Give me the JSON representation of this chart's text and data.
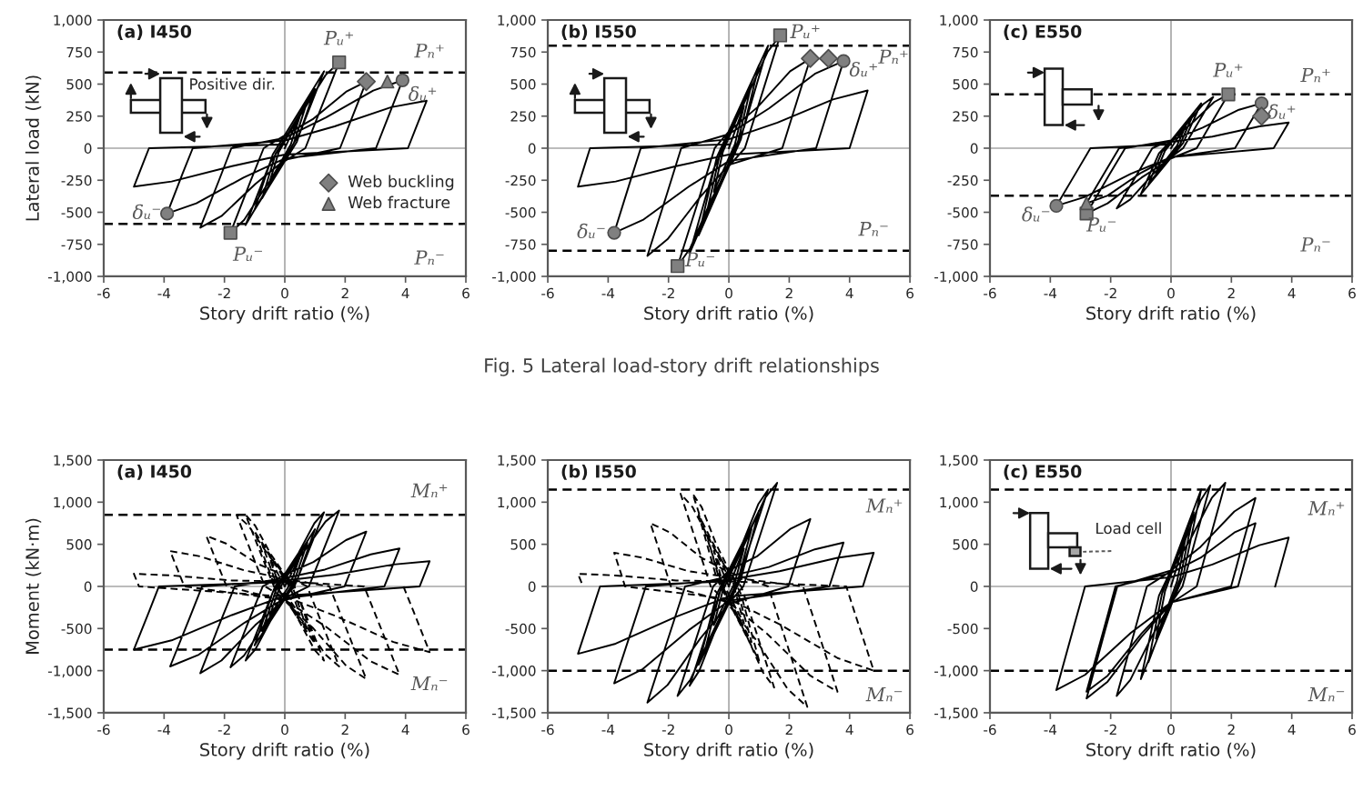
{
  "chart_data": [
    {
      "type": "line",
      "title": "(a) I450",
      "xlabel": "Story drift ratio (%)",
      "ylabel": "Lateral load (kN)",
      "xlim": [
        -6,
        6
      ],
      "xticks": [
        -6,
        -4,
        -2,
        0,
        2,
        4,
        6
      ],
      "ylim": [
        -1000,
        1000
      ],
      "yticks": [
        {
          "value": -1000,
          "label": "-1,000"
        },
        -750,
        -500,
        -250,
        0,
        250,
        500,
        750,
        {
          "value": 1000,
          "label": "1,000"
        }
      ],
      "legend": "bottom right",
      "series": [
        {
          "color": "#000000",
          "line_style": "solid",
          "x": [
            0,
            0.5,
            0.2,
            -0.5,
            -0.2,
            0.75,
            0.3,
            -0.75,
            -0.3,
            1.0,
            0.4,
            -1.0,
            -0.4,
            1.3,
            0.5,
            -1.3,
            -0.5,
            0.63,
            1.35,
            1.8,
            1.13,
            0.68,
            0,
            -0.63,
            -1.35,
            -1.8,
            -1.14,
            -0.7,
            0,
            0.95,
            2.03,
            2.7,
            2.18,
            1.83,
            0,
            -0.98,
            -2.1,
            -2.8,
            -2.18,
            -1.77,
            0,
            1.37,
            2.93,
            3.9,
            3.37,
            3.02,
            0,
            -1.37,
            -2.93,
            -3.9,
            -3.39,
            -3.05,
            0,
            1.65,
            3.53,
            4.7,
            4.33,
            4.08,
            0,
            -1.75,
            -3.75,
            -5.0,
            -4.7,
            -4.5,
            0
          ],
          "values": [
            0,
            250,
            30,
            -260,
            -30,
            370,
            40,
            -390,
            -40,
            460,
            50,
            -480,
            -50,
            600,
            120,
            -600,
            -120,
            300,
            570,
            670,
            270,
            0,
            -100,
            -300,
            -560,
            -660,
            -260,
            0,
            100,
            230,
            440,
            520,
            210,
            0,
            -90,
            -280,
            -530,
            -620,
            -250,
            0,
            80,
            240,
            450,
            530,
            210,
            0,
            -80,
            -230,
            -430,
            -510,
            -200,
            0,
            60,
            170,
            320,
            370,
            150,
            0,
            -50,
            -140,
            -260,
            -300,
            -120,
            0,
            30
          ]
        },
        {
          "type": "scatter",
          "marker": "square",
          "color": "#808080",
          "x": [
            1.8,
            -1.8
          ],
          "values": [
            670,
            -660
          ]
        },
        {
          "type": "scatter",
          "marker": "circle",
          "color": "#808080",
          "x": [
            3.9,
            -3.9
          ],
          "values": [
            530,
            -510
          ]
        },
        {
          "type": "scatter",
          "name": "Web buckling",
          "marker": "diamond",
          "color": "#808080",
          "x": [
            2.7
          ],
          "values": [
            520
          ]
        },
        {
          "type": "scatter",
          "name": "Web fracture",
          "marker": "triangle",
          "color": "#808080",
          "x": [
            3.4
          ],
          "values": [
            520
          ]
        }
      ],
      "ref_lines": [
        {
          "axis": "x",
          "value": 0,
          "color": "#a6a6a6",
          "line_style": "solid"
        },
        {
          "axis": "y",
          "value": 0,
          "color": "#a6a6a6",
          "line_style": "solid"
        },
        {
          "axis": "y",
          "value": 590,
          "label": "Pₙ⁺",
          "color": "#000000",
          "line_style": "dashed"
        },
        {
          "axis": "y",
          "value": -590,
          "label": "Pₙ⁻",
          "color": "#000000",
          "line_style": "dashed"
        }
      ],
      "annotations": [
        {
          "text": "Pᵤ⁺",
          "x": 1.8,
          "y": 670
        },
        {
          "text": "δᵤ⁺",
          "x": 3.9,
          "y": 530
        },
        {
          "text": "Pᵤ⁻",
          "x": -1.8,
          "y": -660
        },
        {
          "text": "δᵤ⁻",
          "x": -3.9,
          "y": -510
        },
        "Positive dir."
      ]
    },
    {
      "type": "line",
      "title": "(b) I550",
      "xlabel": "Story drift ratio (%)",
      "xlim": [
        -6,
        6
      ],
      "xticks": [
        -6,
        -4,
        -2,
        0,
        2,
        4,
        6
      ],
      "ylim": [
        -1000,
        1000
      ],
      "yticks": [
        {
          "value": -1000,
          "label": "-1,000"
        },
        -750,
        -500,
        -250,
        0,
        250,
        500,
        750,
        {
          "value": 1000,
          "label": "1,000"
        }
      ],
      "series": [
        {
          "color": "#000000",
          "line_style": "solid",
          "x": [
            0,
            0.5,
            0.2,
            -0.5,
            -0.2,
            0.75,
            0.3,
            -0.75,
            -0.3,
            1.0,
            0.4,
            -1.0,
            -0.4,
            1.3,
            0.5,
            -1.3,
            -0.5,
            0.6,
            1.28,
            1.7,
            1.0,
            0.53,
            0,
            -0.6,
            -1.28,
            -1.7,
            -0.96,
            -0.47,
            0,
            0.95,
            2.03,
            2.7,
            2.14,
            1.77,
            0,
            -0.95,
            -2.03,
            -2.7,
            -2.03,
            -1.58,
            0,
            1.33,
            2.85,
            3.8,
            3.25,
            2.89,
            0,
            -1.33,
            -2.85,
            -3.8,
            -3.27,
            -2.92,
            0,
            1.61,
            3.45,
            4.6,
            4.24,
            4.0,
            0,
            -1.75,
            -3.75,
            -5.0,
            -4.76,
            -4.6,
            0
          ],
          "values": [
            0,
            330,
            30,
            -340,
            -30,
            500,
            50,
            -520,
            -50,
            650,
            70,
            -680,
            -70,
            800,
            160,
            -820,
            -160,
            400,
            750,
            880,
            350,
            0,
            -140,
            -410,
            -780,
            -920,
            -370,
            0,
            130,
            320,
            600,
            700,
            280,
            0,
            -130,
            -380,
            -710,
            -840,
            -340,
            0,
            110,
            310,
            580,
            680,
            270,
            0,
            -100,
            -300,
            -560,
            -660,
            -260,
            0,
            70,
            200,
            380,
            450,
            180,
            0,
            -50,
            -140,
            -260,
            -300,
            -120,
            0,
            30
          ]
        },
        {
          "type": "scatter",
          "marker": "square",
          "color": "#808080",
          "x": [
            1.7,
            -1.7
          ],
          "values": [
            880,
            -920
          ]
        },
        {
          "type": "scatter",
          "marker": "circle",
          "color": "#808080",
          "x": [
            3.8,
            -3.8
          ],
          "values": [
            680,
            -660
          ]
        },
        {
          "type": "scatter",
          "marker": "diamond",
          "color": "#808080",
          "x": [
            2.7,
            3.3
          ],
          "values": [
            700,
            700
          ]
        }
      ],
      "ref_lines": [
        {
          "axis": "x",
          "value": 0,
          "color": "#a6a6a6",
          "line_style": "solid"
        },
        {
          "axis": "y",
          "value": 0,
          "color": "#a6a6a6",
          "line_style": "solid"
        },
        {
          "axis": "y",
          "value": 800,
          "label": "Pₙ⁺",
          "color": "#000000",
          "line_style": "dashed"
        },
        {
          "axis": "y",
          "value": -800,
          "label": "Pₙ⁻",
          "color": "#000000",
          "line_style": "dashed"
        }
      ],
      "annotations": [
        {
          "text": "Pᵤ⁺",
          "x": 1.7,
          "y": 880
        },
        {
          "text": "δᵤ⁺",
          "x": 3.8,
          "y": 680
        },
        {
          "text": "Pᵤ⁻",
          "x": -1.7,
          "y": -920
        },
        {
          "text": "δᵤ⁻",
          "x": -3.8,
          "y": -660
        },
        "Fig. 5 Lateral load-story drift relationships"
      ]
    },
    {
      "type": "line",
      "title": "(c) E550",
      "xlabel": "Story drift ratio (%)",
      "xlim": [
        -6,
        6
      ],
      "xticks": [
        -6,
        -4,
        -2,
        0,
        2,
        4,
        6
      ],
      "ylim": [
        -1000,
        1000
      ],
      "yticks": [
        {
          "value": -1000,
          "label": "-1,000"
        },
        -750,
        -500,
        -250,
        0,
        250,
        500,
        750,
        {
          "value": 1000,
          "label": "1,000"
        }
      ],
      "series": [
        {
          "color": "#000000",
          "line_style": "solid",
          "x": [
            0,
            0.5,
            0.2,
            -0.5,
            -0.2,
            0.75,
            0.3,
            -0.75,
            -0.3,
            1.0,
            0.4,
            -1.0,
            -0.4,
            0.49,
            1.05,
            1.4,
            0.8,
            0.4,
            0,
            -0.63,
            -1.35,
            -1.8,
            -1.09,
            -0.62,
            0,
            0.67,
            1.43,
            1.9,
            1.27,
            0.85,
            0,
            -0.98,
            -2.1,
            -2.8,
            -2.03,
            -1.52,
            0,
            1.05,
            2.25,
            3.0,
            2.47,
            2.12,
            0,
            -0.98,
            -2.1,
            -2.8,
            -2.15,
            -1.72,
            0,
            1.37,
            2.93,
            3.9,
            3.6,
            3.4,
            0,
            -1.33,
            -2.85,
            -3.8,
            -3.12,
            -2.67,
            0
          ],
          "values": [
            0,
            180,
            20,
            -190,
            -20,
            270,
            30,
            -280,
            -30,
            350,
            40,
            -360,
            -40,
            180,
            340,
            400,
            160,
            0,
            -70,
            -210,
            -400,
            -470,
            -190,
            0,
            60,
            190,
            360,
            420,
            170,
            0,
            -80,
            -230,
            -430,
            -510,
            -200,
            0,
            60,
            160,
            300,
            350,
            140,
            0,
            -70,
            -190,
            -370,
            -430,
            -170,
            0,
            50,
            90,
            170,
            200,
            80,
            0,
            -70,
            -200,
            -380,
            -450,
            -180,
            0,
            30
          ]
        },
        {
          "type": "scatter",
          "marker": "square",
          "color": "#808080",
          "x": [
            1.9,
            -2.8
          ],
          "values": [
            420,
            -510
          ]
        },
        {
          "type": "scatter",
          "marker": "circle",
          "color": "#808080",
          "x": [
            3.0,
            -3.8
          ],
          "values": [
            350,
            -450
          ]
        },
        {
          "type": "scatter",
          "marker": "diamond",
          "color": "#808080",
          "x": [
            3.0
          ],
          "values": [
            250
          ]
        },
        {
          "type": "scatter",
          "marker": "triangle",
          "color": "#808080",
          "x": [
            -2.8
          ],
          "values": [
            -430
          ]
        }
      ],
      "ref_lines": [
        {
          "axis": "x",
          "value": 0,
          "color": "#a6a6a6",
          "line_style": "solid"
        },
        {
          "axis": "y",
          "value": 0,
          "color": "#a6a6a6",
          "line_style": "solid"
        },
        {
          "axis": "y",
          "value": 420,
          "label": "Pₙ⁺",
          "color": "#000000",
          "line_style": "dashed"
        },
        {
          "axis": "y",
          "value": -370,
          "label": "Pₙ⁻",
          "color": "#000000",
          "line_style": "dashed"
        }
      ],
      "annotations": [
        {
          "text": "Pᵤ⁺",
          "x": 1.9,
          "y": 420
        },
        {
          "text": "δᵤ⁺",
          "x": 3.0,
          "y": 350
        },
        {
          "text": "Pᵤ⁻",
          "x": -2.8,
          "y": -510
        },
        {
          "text": "δᵤ⁻",
          "x": -3.8,
          "y": -450
        }
      ]
    },
    {
      "type": "line",
      "title": "(a) I450",
      "xlabel": "Story drift ratio (%)",
      "ylabel": "Moment (kN·m)",
      "xlim": [
        -6,
        6
      ],
      "xticks": [
        -6,
        -4,
        -2,
        0,
        2,
        4,
        6
      ],
      "ylim": [
        -1500,
        1500
      ],
      "yticks": [
        {
          "value": -1500,
          "label": "-1,500"
        },
        {
          "value": -1000,
          "label": "-1,000"
        },
        -500,
        0,
        500,
        {
          "value": 1000,
          "label": "1,000"
        },
        {
          "value": 1500,
          "label": "1,500"
        }
      ],
      "series": [
        {
          "color": "#000000",
          "line_style": "solid",
          "x": [
            0,
            0.5,
            0.2,
            -0.5,
            -0.2,
            0.75,
            0.3,
            -0.75,
            -0.3,
            1.0,
            0.4,
            -1.0,
            -0.4,
            0.46,
            0.98,
            1.3,
            0.71,
            0.32,
            0,
            -0.46,
            -0.98,
            -1.3,
            -0.71,
            -0.32,
            0,
            0.63,
            1.35,
            1.8,
            1.2,
            0.8,
            0,
            -0.63,
            -1.35,
            -1.8,
            -1.16,
            -0.73,
            0,
            0.95,
            2.03,
            2.7,
            2.27,
            1.98,
            0,
            -0.98,
            -2.1,
            -2.8,
            -2.12,
            -1.66,
            0,
            1.33,
            2.85,
            3.8,
            3.5,
            3.3,
            0,
            -1.33,
            -2.85,
            -3.8,
            -3.16,
            -2.74,
            0,
            1.68,
            3.6,
            4.8,
            4.6,
            4.47,
            0,
            -1.75,
            -3.75,
            -5.0,
            -4.5,
            -4.17,
            0
          ],
          "values": [
            0,
            350,
            40,
            -350,
            -40,
            520,
            50,
            -530,
            -50,
            680,
            70,
            -700,
            -70,
            400,
            750,
            880,
            350,
            0,
            -130,
            -400,
            -750,
            -880,
            -350,
            0,
            130,
            410,
            770,
            900,
            360,
            0,
            -140,
            -430,
            -820,
            -960,
            -380,
            0,
            140,
            290,
            550,
            650,
            260,
            0,
            -160,
            -460,
            -880,
            -1030,
            -410,
            0,
            100,
            200,
            380,
            450,
            180,
            0,
            -140,
            -430,
            -810,
            -950,
            -380,
            0,
            70,
            140,
            260,
            300,
            120,
            0,
            -110,
            -340,
            -640,
            -750,
            -300,
            0,
            50
          ]
        },
        {
          "color": "#000000",
          "line_style": "dashed",
          "x": [
            0,
            -0.5,
            -0.2,
            0.5,
            0.2,
            -0.75,
            -0.3,
            0.75,
            0.3,
            -1.0,
            -0.4,
            1.0,
            0.4,
            -0.46,
            -0.98,
            -1.3,
            -0.74,
            -0.36,
            0,
            0.46,
            0.98,
            1.3,
            0.71,
            0.32,
            0,
            -0.56,
            -1.2,
            -1.6,
            -1.04,
            -0.66,
            0,
            0.63,
            1.35,
            1.8,
            1.16,
            0.74,
            0,
            -0.91,
            -1.95,
            -2.6,
            -2.2,
            -1.93,
            0,
            0.95,
            2.03,
            2.7,
            1.97,
            1.48,
            0,
            -1.33,
            -2.85,
            -3.8,
            -3.52,
            -3.33,
            0,
            1.33,
            2.85,
            3.8,
            3.1,
            2.63,
            0,
            -1.75,
            -3.75,
            -5.0,
            -4.9,
            -4.83,
            0,
            1.68,
            3.6,
            4.8,
            4.28,
            3.93
          ],
          "values": [
            0,
            330,
            30,
            -340,
            -30,
            500,
            50,
            -520,
            -50,
            650,
            70,
            -680,
            -70,
            380,
            720,
            850,
            340,
            0,
            -130,
            -400,
            -750,
            -880,
            -350,
            0,
            130,
            380,
            720,
            850,
            340,
            0,
            -140,
            -430,
            -810,
            -950,
            -380,
            0,
            130,
            270,
            510,
            600,
            240,
            0,
            -170,
            -500,
            -940,
            -1100,
            -440,
            0,
            90,
            190,
            360,
            420,
            170,
            0,
            -160,
            -470,
            -890,
            -1050,
            -420,
            0,
            60,
            70,
            130,
            150,
            60,
            0,
            -120,
            -350,
            -660,
            -780,
            -310,
            0
          ]
        }
      ],
      "ref_lines": [
        {
          "axis": "x",
          "value": 0,
          "color": "#a6a6a6",
          "line_style": "solid"
        },
        {
          "axis": "y",
          "value": 0,
          "color": "#a6a6a6",
          "line_style": "solid"
        },
        {
          "axis": "y",
          "value": 850,
          "label": "Mₙ⁺",
          "color": "#000000",
          "line_style": "dashed"
        },
        {
          "axis": "y",
          "value": -750,
          "label": "Mₙ⁻",
          "color": "#000000",
          "line_style": "dashed"
        }
      ]
    },
    {
      "type": "line",
      "title": "(b) I550",
      "xlabel": "Story drift ratio (%)",
      "xlim": [
        -6,
        6
      ],
      "xticks": [
        -6,
        -4,
        -2,
        0,
        2,
        4,
        6
      ],
      "ylim": [
        -1500,
        1500
      ],
      "yticks": [
        {
          "value": -1500,
          "label": "-1,500"
        },
        {
          "value": -1000,
          "label": "-1,000"
        },
        -500,
        0,
        500,
        {
          "value": 1000,
          "label": "1,000"
        },
        {
          "value": 1500,
          "label": "1,500"
        }
      ],
      "series": [
        {
          "color": "#000000",
          "line_style": "solid",
          "x": [
            0,
            0.5,
            0.2,
            -0.5,
            -0.2,
            0.75,
            0.3,
            -0.75,
            -0.3,
            1.0,
            0.4,
            -1.0,
            -0.4,
            0.46,
            0.98,
            1.3,
            0.67,
            0.25,
            0,
            -0.46,
            -0.98,
            -1.3,
            -0.66,
            -0.23,
            0,
            0.56,
            1.2,
            1.6,
            0.93,
            0.48,
            0,
            -0.6,
            -1.28,
            -1.7,
            -0.99,
            -0.52,
            0,
            0.95,
            2.03,
            2.7,
            2.26,
            1.97,
            0,
            -0.95,
            -2.03,
            -2.7,
            -1.95,
            -1.45,
            0,
            1.33,
            2.85,
            3.8,
            3.52,
            3.33,
            0,
            -1.33,
            -2.85,
            -3.8,
            -3.17,
            -2.75,
            0,
            1.68,
            3.6,
            4.8,
            4.58,
            4.44,
            0,
            -1.75,
            -3.75,
            -5.0,
            -4.56,
            -4.27,
            0
          ],
          "values": [
            0,
            450,
            50,
            -460,
            -50,
            680,
            70,
            -700,
            -70,
            900,
            90,
            -930,
            -90,
            520,
            980,
            1150,
            460,
            0,
            -180,
            -530,
            -1000,
            -1180,
            -470,
            0,
            170,
            550,
            1050,
            1230,
            490,
            0,
            -200,
            -590,
            -1110,
            -1300,
            -520,
            0,
            190,
            360,
            680,
            800,
            320,
            0,
            -210,
            -620,
            -1170,
            -1380,
            -550,
            0,
            120,
            230,
            440,
            520,
            210,
            0,
            -170,
            -520,
            -980,
            -1150,
            -460,
            0,
            80,
            180,
            340,
            400,
            160,
            0,
            -120,
            -360,
            -680,
            -800,
            -320,
            0,
            60
          ]
        },
        {
          "color": "#000000",
          "line_style": "dashed",
          "x": [
            0,
            -0.5,
            -0.2,
            0.5,
            0.2,
            -0.75,
            -0.3,
            0.75,
            0.3,
            -1.0,
            -0.4,
            1.0,
            0.4,
            -0.42,
            -0.9,
            -1.2,
            -0.6,
            -0.2,
            0,
            0.53,
            1.13,
            1.5,
            0.85,
            0.41,
            0,
            -0.56,
            -1.2,
            -1.6,
            -1.0,
            -0.6,
            0,
            0.91,
            1.95,
            2.6,
            1.82,
            1.3,
            0,
            -0.91,
            -1.95,
            -2.6,
            -2.19,
            -1.92,
            0,
            1.26,
            2.7,
            3.6,
            2.92,
            2.46,
            0,
            -1.33,
            -2.85,
            -3.8,
            -3.58,
            -3.44,
            0,
            1.68,
            3.6,
            4.8,
            4.25,
            3.89,
            0,
            -1.75,
            -3.75,
            -5.0,
            -4.9,
            -4.83
          ],
          "values": [
            0,
            420,
            40,
            -440,
            -40,
            640,
            60,
            -660,
            -70,
            850,
            90,
            -880,
            -90,
            500,
            940,
            1100,
            440,
            0,
            -180,
            -540,
            -1020,
            -1200,
            -480,
            0,
            170,
            500,
            940,
            1100,
            440,
            0,
            -220,
            -640,
            -1220,
            -1430,
            -570,
            0,
            170,
            340,
            640,
            750,
            300,
            0,
            -190,
            -560,
            -1060,
            -1250,
            -500,
            0,
            110,
            180,
            340,
            400,
            160,
            0,
            -150,
            -450,
            -850,
            -1000,
            -400,
            0,
            60,
            70,
            130,
            150,
            60,
            0
          ]
        }
      ],
      "ref_lines": [
        {
          "axis": "x",
          "value": 0,
          "color": "#a6a6a6",
          "line_style": "solid"
        },
        {
          "axis": "y",
          "value": 0,
          "color": "#a6a6a6",
          "line_style": "solid"
        },
        {
          "axis": "y",
          "value": 1150,
          "label": "Mₙ⁺",
          "color": "#000000",
          "line_style": "dashed"
        },
        {
          "axis": "y",
          "value": -1000,
          "label": "Mₙ⁻",
          "color": "#000000",
          "line_style": "dashed"
        }
      ]
    },
    {
      "type": "line",
      "title": "(c) E550",
      "xlabel": "Story drift ratio (%)",
      "xlim": [
        -6,
        6
      ],
      "xticks": [
        -6,
        -4,
        -2,
        0,
        2,
        4,
        6
      ],
      "ylim": [
        -1500,
        1500
      ],
      "yticks": [
        {
          "value": -1500,
          "label": "-1,500"
        },
        {
          "value": -1000,
          "label": "-1,000"
        },
        -500,
        0,
        500,
        {
          "value": 1000,
          "label": "1,000"
        },
        {
          "value": 1500,
          "label": "1,500"
        }
      ],
      "series": [
        {
          "color": "#000000",
          "line_style": "solid",
          "x": [
            0,
            0.5,
            0.2,
            -0.5,
            -0.2,
            0.75,
            0.3,
            -0.75,
            -0.3,
            1.0,
            0.4,
            -1.0,
            -0.4,
            0.46,
            0.98,
            1.3,
            0.75,
            0.38,
            0,
            -0.63,
            -1.35,
            -1.8,
            -1.2,
            -0.8,
            0,
            0.63,
            1.35,
            1.8,
            1.23,
            0.85,
            0,
            -0.98,
            -2.1,
            -2.8,
            -2.19,
            -1.78,
            0,
            0.98,
            2.1,
            2.8,
            2.31,
            1.99,
            0,
            -0.98,
            -2.1,
            -2.8,
            -2.22,
            -1.84,
            0,
            0.98,
            2.1,
            2.8,
            2.45,
            2.22,
            0,
            -1.33,
            -2.85,
            -3.8,
            -3.23,
            -2.85,
            0,
            1.37,
            2.93,
            3.9,
            3.63,
            3.45
          ],
          "values": [
            0,
            600,
            60,
            -620,
            -60,
            880,
            90,
            -900,
            -90,
            1150,
            120,
            -1100,
            -110,
            540,
            1020,
            1200,
            480,
            0,
            -200,
            -590,
            -1110,
            -1300,
            -520,
            0,
            180,
            550,
            1050,
            1230,
            490,
            0,
            -200,
            -600,
            -1130,
            -1330,
            -530,
            0,
            190,
            470,
            890,
            1050,
            420,
            0,
            -190,
            -560,
            -1060,
            -1250,
            -500,
            0,
            160,
            340,
            640,
            750,
            300,
            0,
            -190,
            -550,
            -1050,
            -1230,
            -490,
            0,
            110,
            260,
            490,
            580,
            230,
            0
          ]
        }
      ],
      "ref_lines": [
        {
          "axis": "x",
          "value": 0,
          "color": "#a6a6a6",
          "line_style": "solid"
        },
        {
          "axis": "y",
          "value": 0,
          "color": "#a6a6a6",
          "line_style": "solid"
        },
        {
          "axis": "y",
          "value": 1150,
          "label": "Mₙ⁺",
          "color": "#000000",
          "line_style": "dashed"
        },
        {
          "axis": "y",
          "value": -1000,
          "label": "Mₙ⁻",
          "color": "#000000",
          "line_style": "dashed"
        }
      ],
      "annotations": [
        "Load cell"
      ]
    }
  ]
}
